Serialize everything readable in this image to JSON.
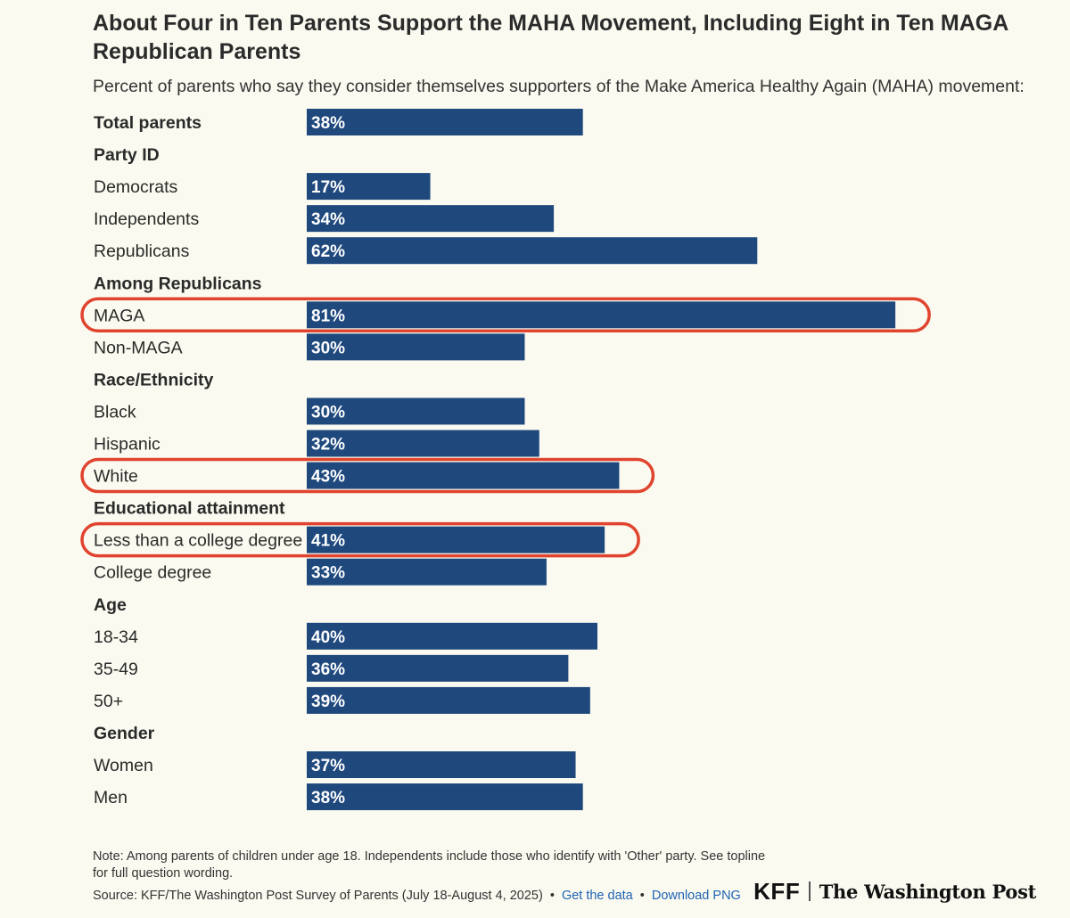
{
  "header": {
    "title": "About Four in Ten Parents Support the MAHA Movement, Including Eight in Ten MAGA Republican Parents",
    "subtitle": "Percent of parents who say they consider themselves supporters of the Make America Healthy Again (MAHA) movement:"
  },
  "chart_data": {
    "type": "bar",
    "orientation": "horizontal",
    "title": "About Four in Ten Parents Support the MAHA Movement, Including Eight in Ten MAGA Republican Parents",
    "subtitle": "Percent of parents who say they consider themselves supporters of the Make America Healthy Again (MAHA) movement:",
    "unit": "%",
    "xlim": [
      0,
      100
    ],
    "grid": false,
    "legend": "none",
    "bar_color": "#1f497d",
    "highlight_color": "#e0442e",
    "rows": [
      {
        "kind": "bar",
        "label": "Total parents",
        "bold": true,
        "value": 38,
        "value_label": "38%"
      },
      {
        "kind": "header",
        "label": "Party ID"
      },
      {
        "kind": "bar",
        "label": "Democrats",
        "value": 17,
        "value_label": "17%"
      },
      {
        "kind": "bar",
        "label": "Independents",
        "value": 34,
        "value_label": "34%"
      },
      {
        "kind": "bar",
        "label": "Republicans",
        "value": 62,
        "value_label": "62%"
      },
      {
        "kind": "header",
        "label": "Among Republicans"
      },
      {
        "kind": "bar",
        "label": "MAGA",
        "value": 81,
        "value_label": "81%",
        "highlighted": true
      },
      {
        "kind": "bar",
        "label": "Non-MAGA",
        "value": 30,
        "value_label": "30%"
      },
      {
        "kind": "header",
        "label": "Race/Ethnicity"
      },
      {
        "kind": "bar",
        "label": "Black",
        "value": 30,
        "value_label": "30%"
      },
      {
        "kind": "bar",
        "label": "Hispanic",
        "value": 32,
        "value_label": "32%"
      },
      {
        "kind": "bar",
        "label": "White",
        "value": 43,
        "value_label": "43%",
        "highlighted": true
      },
      {
        "kind": "header",
        "label": "Educational attainment"
      },
      {
        "kind": "bar",
        "label": "Less than a college degree",
        "value": 41,
        "value_label": "41%",
        "highlighted": true
      },
      {
        "kind": "bar",
        "label": "College degree",
        "value": 33,
        "value_label": "33%"
      },
      {
        "kind": "header",
        "label": "Age"
      },
      {
        "kind": "bar",
        "label": "18-34",
        "value": 40,
        "value_label": "40%"
      },
      {
        "kind": "bar",
        "label": "35-49",
        "value": 36,
        "value_label": "36%"
      },
      {
        "kind": "bar",
        "label": "50+",
        "value": 39,
        "value_label": "39%"
      },
      {
        "kind": "header",
        "label": "Gender"
      },
      {
        "kind": "bar",
        "label": "Women",
        "value": 37,
        "value_label": "37%"
      },
      {
        "kind": "bar",
        "label": "Men",
        "value": 38,
        "value_label": "38%"
      }
    ]
  },
  "footer": {
    "note": "Note: Among parents of children under age 18. Independents include those who identify with 'Other' party. See topline for full question wording.",
    "source": "Source: KFF/The Washington Post Survey of Parents (July 18-August 4, 2025)",
    "bullet": "•",
    "get_data_label": "Get the data",
    "download_label": "Download PNG"
  },
  "brand": {
    "kff": "KFF",
    "wapo": "The Washington Post"
  },
  "colors": {
    "background": "#fbfaf0",
    "link": "#1f63b3"
  }
}
